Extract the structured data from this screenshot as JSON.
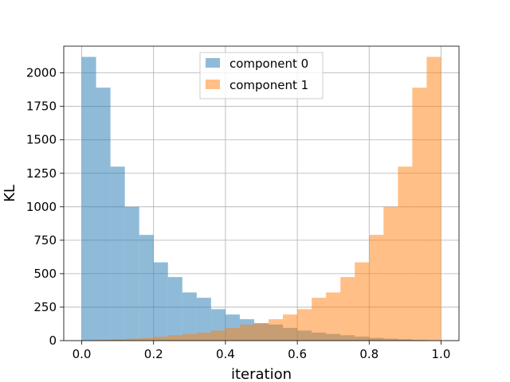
{
  "chart_data": {
    "type": "bar",
    "title": "",
    "xlabel": "iteration",
    "ylabel": "KL",
    "xlim": [
      -0.05,
      1.05
    ],
    "ylim": [
      0,
      2200
    ],
    "xticks": [
      0.0,
      0.2,
      0.4,
      0.6,
      0.8,
      1.0
    ],
    "xtick_labels": [
      "0.0",
      "0.2",
      "0.4",
      "0.6",
      "0.8",
      "1.0"
    ],
    "yticks": [
      0,
      250,
      500,
      750,
      1000,
      1250,
      1500,
      1750,
      2000
    ],
    "ytick_labels": [
      "0",
      "250",
      "500",
      "750",
      "1000",
      "1250",
      "1500",
      "1750",
      "2000"
    ],
    "grid": true,
    "legend_position": "top-center",
    "bin_edges": [
      0.0,
      0.04,
      0.08,
      0.12,
      0.16,
      0.2,
      0.24,
      0.28,
      0.32,
      0.36,
      0.4,
      0.44,
      0.48,
      0.52,
      0.56,
      0.6,
      0.64,
      0.68,
      0.72,
      0.76,
      0.8,
      0.84,
      0.88,
      0.92,
      0.96,
      1.0
    ],
    "series": [
      {
        "name": "component 0",
        "color": "#1f77b4",
        "opacity": 0.5,
        "values": [
          2120,
          1890,
          1300,
          1000,
          790,
          585,
          475,
          360,
          320,
          235,
          195,
          160,
          130,
          120,
          95,
          75,
          60,
          50,
          40,
          30,
          20,
          15,
          10,
          5,
          2
        ]
      },
      {
        "name": "component 1",
        "color": "#ff7f0e",
        "opacity": 0.5,
        "values": [
          2,
          5,
          10,
          15,
          20,
          30,
          40,
          50,
          60,
          75,
          95,
          120,
          130,
          160,
          195,
          235,
          320,
          360,
          475,
          585,
          790,
          1000,
          1300,
          1890,
          2120
        ]
      }
    ]
  }
}
